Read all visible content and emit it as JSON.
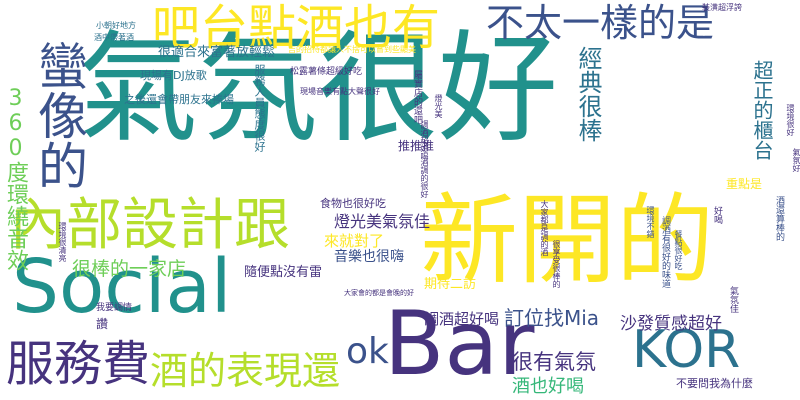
{
  "palette": {
    "background": "#ffffff",
    "dark_purple": "#46337e",
    "indigo": "#3b528b",
    "blue": "#365c8d",
    "steel_blue": "#2c728e",
    "teal": "#21918c",
    "sea_green": "#1f9e89",
    "green": "#35b779",
    "lime": "#6ece58",
    "yellow_green": "#b5de2b",
    "yellow": "#fde725"
  },
  "words": [
    {
      "text": "氣氛很好",
      "color": "#21918c"
    },
    {
      "text": "新開的",
      "color": "#fde725"
    },
    {
      "text": "Social",
      "color": "#21918c"
    },
    {
      "text": "Bar",
      "color": "#46337e"
    },
    {
      "text": "KOR",
      "color": "#2c728e"
    },
    {
      "text": "內部設計跟",
      "color": "#b5de2b"
    },
    {
      "text": "吧台點酒也有",
      "color": "#fde725"
    },
    {
      "text": "不太一樣的是",
      "color": "#3b528b"
    },
    {
      "text": "蠻像的",
      "color": "#3b528b"
    },
    {
      "text": "服務費",
      "color": "#46337e"
    },
    {
      "text": "酒的表現還",
      "color": "#b5de2b"
    },
    {
      "text": "ok",
      "color": "#3b528b"
    },
    {
      "text": "360度環繞音效",
      "color": "#6ece58"
    },
    {
      "text": "很棒的一家店",
      "color": "#6ece58"
    },
    {
      "text": "經典很棒",
      "color": "#2c728e"
    },
    {
      "text": "超正的櫃台",
      "color": "#2c728e"
    },
    {
      "text": "很有氣氛",
      "color": "#46337e"
    },
    {
      "text": "酒也好喝",
      "color": "#35b779"
    },
    {
      "text": "訂位找Mia",
      "color": "#3b528b"
    },
    {
      "text": "沙發質感超好",
      "color": "#46337e"
    },
    {
      "text": "調酒超好喝",
      "color": "#46337e"
    },
    {
      "text": "燈光美氣氛佳",
      "color": "#46337e"
    },
    {
      "text": "音樂也很嗨",
      "color": "#3b528b"
    },
    {
      "text": "食物也很好吃",
      "color": "#46337e"
    },
    {
      "text": "來就對了",
      "color": "#fde725"
    },
    {
      "text": "隨便點沒有雷",
      "color": "#46337e"
    },
    {
      "text": "很適合來富著放輕鬆",
      "color": "#2c728e"
    },
    {
      "text": "現場有DJ放歌",
      "color": "#2c728e"
    },
    {
      "text": "之後還會帶朋友來捧場",
      "color": "#2c728e"
    },
    {
      "text": "服務人員態度很好",
      "color": "#2c728e"
    },
    {
      "text": "推推推",
      "color": "#46337e"
    },
    {
      "text": "期待二訪",
      "color": "#fde725"
    },
    {
      "text": "重點是",
      "color": "#fde725"
    },
    {
      "text": "不要問我為什麼",
      "color": "#46337e"
    },
    {
      "text": "氣氛佳",
      "color": "#46337e"
    },
    {
      "text": "讚",
      "color": "#46337e"
    },
    {
      "text": "我要調情",
      "color": "#46337e"
    },
    {
      "text": "環境很清亮",
      "color": "#46337e"
    },
    {
      "text": "小朝好地方",
      "color": "#2c728e"
    },
    {
      "text": "酒中帶著酒",
      "color": "#2c728e"
    },
    {
      "text": "裝潢超浮誇",
      "color": "#46337e"
    },
    {
      "text": "松露薯條超級好吃",
      "color": "#46337e"
    },
    {
      "text": "吉的招待都讓人不捨可以嘗到些顯美",
      "color": "#fde725"
    },
    {
      "text": "現場音樂有點大聲很好",
      "color": "#46337e"
    },
    {
      "text": "氣氛好",
      "color": "#46337e"
    },
    {
      "text": "環境很好",
      "color": "#46337e"
    },
    {
      "text": "燈光美",
      "color": "#46337e"
    },
    {
      "text": "屬實店的還吧",
      "color": "#46337e"
    },
    {
      "text": "調酒超好喝",
      "color": "#46337e"
    },
    {
      "text": "酒調的很好",
      "color": "#46337e"
    },
    {
      "text": "調酒有很好的味道",
      "color": "#3b528b"
    },
    {
      "text": "環境不錯",
      "color": "#3b528b"
    },
    {
      "text": "餐點很好吃",
      "color": "#3b528b"
    },
    {
      "text": "大家會的都是會晚的好",
      "color": "#46337e"
    },
    {
      "text": "大家都是調的酒",
      "color": "#46337e"
    },
    {
      "text": "很享受很棒的",
      "color": "#46337e"
    },
    {
      "text": "酒還算棒的",
      "color": "#3b528b"
    },
    {
      "text": "好喝",
      "color": "#46337e"
    }
  ]
}
